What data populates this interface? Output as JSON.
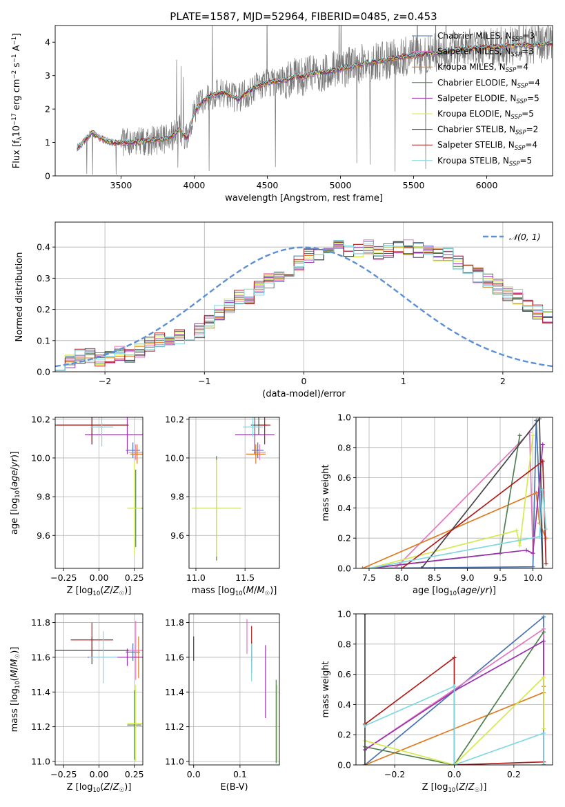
{
  "title": "PLATE=1587, MJD=52964, FIBERID=0485, z=0.453",
  "colors": {
    "chabrier_miles": "#4a72b0",
    "salpeter_miles": "#e377c2",
    "kroupa_miles": "#e07a1f",
    "chabrier_elodie": "#4f7f4f",
    "salpeter_elodie": "#9b30b0",
    "kroupa_elodie": "#d4ea50",
    "chabrier_stelib": "#444444",
    "salpeter_stelib": "#b01c1c",
    "kroupa_stelib": "#7fd8e0",
    "data": "#777777",
    "normal": "#5b8fd6"
  },
  "chart_data": [
    {
      "id": "spectrum",
      "type": "line",
      "xlabel": "wavelength [Angstrom, rest frame]",
      "ylabel": "Flux [f_λ 10^-17 erg cm^-2 s^-1 A^-1]",
      "xlim": [
        3050,
        6450
      ],
      "ylim": [
        0,
        4.5
      ],
      "xticks": [
        "3500",
        "4000",
        "4500",
        "5000",
        "5500",
        "6000"
      ],
      "yticks": [
        "0",
        "1",
        "2",
        "3",
        "4"
      ],
      "legend": "upper right",
      "legend_entries": [
        "Chabrier MILES, N_SSP=3",
        "Salpeter MILES, N_SSP=3",
        "Kroupa MILES, N_SSP=4",
        "Chabrier ELODIE, N_SSP=4",
        "Salpeter ELODIE, N_SSP=5",
        "Kroupa ELODIE, N_SSP=5",
        "Chabrier STELIB, N_SSP=2",
        "Salpeter STELIB, N_SSP=4",
        "Kroupa STELIB, N_SSP=5"
      ],
      "model_continuum": {
        "x": [
          3200,
          3220,
          3260,
          3300,
          3350,
          3400,
          3450,
          3500,
          3550,
          3600,
          3650,
          3700,
          3750,
          3800,
          3850,
          3900,
          3950,
          4000,
          4050,
          4100,
          4150,
          4200,
          4250,
          4300,
          4350,
          4400,
          4450,
          4500,
          4550,
          4600,
          4650,
          4700,
          4750,
          4800,
          4850,
          4900,
          4950,
          5000,
          5100,
          5200,
          5300,
          5400,
          5500,
          5600,
          5700,
          5800,
          5900,
          6000,
          6100,
          6200,
          6300,
          6400
        ],
        "y": [
          0.85,
          0.9,
          1.1,
          1.3,
          1.15,
          1.05,
          0.98,
          1.0,
          1.0,
          1.0,
          1.05,
          1.05,
          1.08,
          1.1,
          1.2,
          1.4,
          1.1,
          1.9,
          2.2,
          2.35,
          2.45,
          2.5,
          2.4,
          2.3,
          2.45,
          2.6,
          2.7,
          2.8,
          2.82,
          2.85,
          2.9,
          3.0,
          2.95,
          3.05,
          3.1,
          3.1,
          3.15,
          3.2,
          3.3,
          3.4,
          3.45,
          3.55,
          3.6,
          3.65,
          3.7,
          3.78,
          3.82,
          3.85,
          3.88,
          3.9,
          3.92,
          3.95
        ]
      }
    },
    {
      "id": "residual-histogram",
      "type": "line",
      "xlabel": "(data-model)/error",
      "ylabel": "Normed distribution",
      "xlim": [
        -2.5,
        2.5
      ],
      "ylim": [
        0,
        0.48
      ],
      "xticks": [
        "−2",
        "−1",
        "0",
        "1",
        "2"
      ],
      "yticks": [
        "0.0",
        "0.1",
        "0.2",
        "0.3",
        "0.4"
      ],
      "legend": "upper right",
      "legend_entries": [
        "𝒩(0, 1)"
      ],
      "hist_base": {
        "x_start": -2.5,
        "bin_width": 0.1,
        "values": [
          0.03,
          0.03,
          0.05,
          0.05,
          0.04,
          0.05,
          0.06,
          0.05,
          0.07,
          0.09,
          0.1,
          0.1,
          0.11,
          0.11,
          0.13,
          0.16,
          0.19,
          0.21,
          0.24,
          0.24,
          0.27,
          0.29,
          0.31,
          0.33,
          0.35,
          0.37,
          0.38,
          0.39,
          0.4,
          0.38,
          0.39,
          0.4,
          0.38,
          0.39,
          0.4,
          0.4,
          0.39,
          0.38,
          0.37,
          0.38,
          0.35,
          0.33,
          0.31,
          0.29,
          0.27,
          0.25,
          0.24,
          0.21,
          0.19,
          0.17,
          0.16,
          0.14,
          0.13,
          0.11,
          0.1,
          0.08,
          0.07,
          0.06,
          0.06,
          0.05,
          0.05,
          0.04,
          0.04,
          0.03,
          0.03
        ]
      },
      "normal_pdf": true
    },
    {
      "id": "age-vs-Z",
      "type": "scatter",
      "xlabel": "Z [log10(Z/Z☉)]",
      "ylabel": "age [log10(age/yr)]",
      "xlim": [
        -0.31,
        0.31
      ],
      "ylim": [
        9.43,
        10.21
      ],
      "xticks": [
        "−0.25",
        "0.00",
        "0.25"
      ],
      "yticks": [
        "9.6",
        "9.8",
        "10.0",
        "10.2"
      ],
      "points": [
        {
          "model": "chabrier_miles",
          "x": 0.24,
          "y": 10.04,
          "xerr": 0.05,
          "yerr": 0.04
        },
        {
          "model": "salpeter_miles",
          "x": 0.26,
          "y": 10.03,
          "xerr": 0.05,
          "yerr": 0.04
        },
        {
          "model": "kroupa_miles",
          "x": 0.27,
          "y": 10.02,
          "xerr": 0.05,
          "yerr": 0.05
        },
        {
          "model": "chabrier_elodie",
          "x": 0.26,
          "y": 9.74,
          "xerr": 0.06,
          "yerr": 0.2
        },
        {
          "model": "salpeter_elodie",
          "x": 0.2,
          "y": 10.12,
          "xerr": 0.3,
          "yerr": 0.1
        },
        {
          "model": "kroupa_elodie",
          "x": 0.25,
          "y": 9.74,
          "xerr": 0.05,
          "yerr": 0.24
        },
        {
          "model": "chabrier_stelib",
          "x": -0.05,
          "y": 10.17,
          "xerr": 0.26,
          "yerr": 0.1
        },
        {
          "model": "salpeter_stelib",
          "x": -0.05,
          "y": 10.17,
          "xerr": 0.25,
          "yerr": 0.1
        },
        {
          "model": "kroupa_stelib",
          "x": 0.02,
          "y": 10.16,
          "xerr": 0.08,
          "yerr": 0.1
        }
      ]
    },
    {
      "id": "age-vs-mass",
      "type": "scatter",
      "xlabel": "mass [log10(M/M☉)]",
      "ylabel": "",
      "xlim": [
        10.93,
        11.85
      ],
      "ylim": [
        9.43,
        10.21
      ],
      "xticks": [
        "11.0",
        "11.5"
      ],
      "yticks": [
        "9.6",
        "9.8",
        "10.0",
        "10.2"
      ],
      "points": [
        {
          "model": "chabrier_miles",
          "x": 11.63,
          "y": 10.04,
          "xerr": 0.06,
          "yerr": 0.04
        },
        {
          "model": "salpeter_miles",
          "x": 11.65,
          "y": 10.03,
          "xerr": 0.06,
          "yerr": 0.04
        },
        {
          "model": "kroupa_miles",
          "x": 11.61,
          "y": 10.02,
          "xerr": 0.1,
          "yerr": 0.05
        },
        {
          "model": "chabrier_elodie",
          "x": 11.21,
          "y": 9.74,
          "xerr": 0.25,
          "yerr": 0.27
        },
        {
          "model": "salpeter_elodie",
          "x": 11.6,
          "y": 10.12,
          "xerr": 0.2,
          "yerr": 0.1
        },
        {
          "model": "kroupa_elodie",
          "x": 11.21,
          "y": 9.74,
          "xerr": 0.25,
          "yerr": 0.25
        },
        {
          "model": "chabrier_stelib",
          "x": 11.64,
          "y": 10.17,
          "xerr": 0.08,
          "yerr": 0.05
        },
        {
          "model": "salpeter_stelib",
          "x": 11.7,
          "y": 10.17,
          "xerr": 0.06,
          "yerr": 0.1
        },
        {
          "model": "kroupa_stelib",
          "x": 11.58,
          "y": 10.16,
          "xerr": 0.1,
          "yerr": 0.05
        }
      ]
    },
    {
      "id": "massweight-vs-age",
      "type": "line",
      "xlabel": "age [log10(age/yr)]",
      "ylabel": "mass weight",
      "xlim": [
        7.3,
        10.3
      ],
      "ylim": [
        0,
        1
      ],
      "xticks": [
        "7.5",
        "8.0",
        "8.5",
        "9.0",
        "9.5",
        "10.0"
      ],
      "yticks": [
        "0.0",
        "0.2",
        "0.4",
        "0.6",
        "0.8",
        "1.0"
      ],
      "series": [
        {
          "model": "chabrier_miles",
          "x": [
            7.4,
            10.0,
            10.05,
            10.15
          ],
          "y": [
            0.0,
            0.01,
            0.98,
            0.0
          ]
        },
        {
          "model": "salpeter_miles",
          "x": [
            7.9,
            9.95,
            10.0
          ],
          "y": [
            0.0,
            0.9,
            0.1
          ]
        },
        {
          "model": "kroupa_miles",
          "x": [
            7.4,
            10.05,
            10.1,
            10.2
          ],
          "y": [
            0.0,
            0.5,
            0.3,
            0.2
          ]
        },
        {
          "model": "chabrier_elodie",
          "x": [
            7.5,
            9.5,
            9.8
          ],
          "y": [
            0.0,
            0.1,
            0.88
          ]
        },
        {
          "model": "salpeter_elodie",
          "x": [
            7.5,
            9.9,
            10.0,
            10.15
          ],
          "y": [
            0.0,
            0.12,
            0.1,
            0.82
          ]
        },
        {
          "model": "kroupa_elodie",
          "x": [
            7.5,
            9.75,
            9.8,
            10.0
          ],
          "y": [
            0.0,
            0.25,
            0.15,
            0.88
          ]
        },
        {
          "model": "chabrier_stelib",
          "x": [
            8.3,
            10.1,
            10.15
          ],
          "y": [
            0.0,
            0.99,
            0.0
          ]
        },
        {
          "model": "salpeter_stelib",
          "x": [
            8.0,
            10.15,
            10.2
          ],
          "y": [
            0.0,
            0.71,
            0.03
          ]
        },
        {
          "model": "kroupa_stelib",
          "x": [
            7.5,
            10.1,
            10.15,
            10.2
          ],
          "y": [
            0.0,
            0.21,
            0.52,
            0.26
          ]
        }
      ]
    },
    {
      "id": "mass-vs-Z",
      "type": "scatter",
      "xlabel": "Z [log10(Z/Z☉)]",
      "ylabel": "mass [log10(M/M☉)]",
      "xlim": [
        -0.31,
        0.31
      ],
      "ylim": [
        10.98,
        11.85
      ],
      "xticks": [
        "−0.25",
        "0.00",
        "0.25"
      ],
      "yticks": [
        "11.0",
        "11.2",
        "11.4",
        "11.6",
        "11.8"
      ],
      "points": [
        {
          "model": "chabrier_miles",
          "x": 0.24,
          "y": 11.63,
          "xerr": 0.05,
          "yerr": 0.05
        },
        {
          "model": "salpeter_miles",
          "x": 0.26,
          "y": 11.64,
          "xerr": 0.05,
          "yerr": 0.17
        },
        {
          "model": "kroupa_miles",
          "x": 0.28,
          "y": 11.6,
          "xerr": 0.05,
          "yerr": 0.12
        },
        {
          "model": "chabrier_elodie",
          "x": 0.25,
          "y": 11.21,
          "xerr": 0.05,
          "yerr": 0.2
        },
        {
          "model": "salpeter_elodie",
          "x": 0.2,
          "y": 11.6,
          "xerr": 0.28,
          "yerr": 0.05
        },
        {
          "model": "kroupa_elodie",
          "x": 0.26,
          "y": 11.22,
          "xerr": 0.06,
          "yerr": 0.22
        },
        {
          "model": "chabrier_stelib",
          "x": -0.05,
          "y": 11.64,
          "xerr": 0.26,
          "yerr": 0.08
        },
        {
          "model": "salpeter_stelib",
          "x": -0.05,
          "y": 11.7,
          "xerr": 0.15,
          "yerr": 0.1
        },
        {
          "model": "kroupa_stelib",
          "x": 0.03,
          "y": 11.6,
          "xerr": 0.1,
          "yerr": 0.15
        }
      ]
    },
    {
      "id": "mass-vs-ebv",
      "type": "scatter",
      "xlabel": "E(B-V)",
      "ylabel": "",
      "xlim": [
        -0.01,
        0.185
      ],
      "ylim": [
        10.98,
        11.85
      ],
      "xticks": [
        "0.0",
        "0.1"
      ],
      "yticks": [
        "11.0",
        "11.2",
        "11.4",
        "11.6",
        "11.8"
      ],
      "points": [
        {
          "model": "chabrier_stelib",
          "x": 0.0,
          "y": 11.65,
          "xerr": 0.0,
          "yerr": 0.07
        },
        {
          "model": "salpeter_miles",
          "x": 0.115,
          "y": 11.72,
          "xerr": 0.0,
          "yerr": 0.1
        },
        {
          "model": "chabrier_elodie",
          "x": 0.125,
          "y": 11.6,
          "xerr": 0.0,
          "yerr": 0.09
        },
        {
          "model": "salpeter_stelib",
          "x": 0.125,
          "y": 11.68,
          "xerr": 0.0,
          "yerr": 0.1
        },
        {
          "model": "kroupa_stelib",
          "x": 0.125,
          "y": 11.57,
          "xerr": 0.0,
          "yerr": 0.11
        },
        {
          "model": "salpeter_elodie",
          "x": 0.155,
          "y": 11.46,
          "xerr": 0.0,
          "yerr": 0.21
        },
        {
          "model": "chabrier_elodie",
          "x": 0.178,
          "y": 11.23,
          "xerr": 0.0,
          "yerr": 0.24
        },
        {
          "model": "kroupa_elodie",
          "x": 0.18,
          "y": 11.22,
          "xerr": 0.0,
          "yerr": 0.22
        }
      ]
    },
    {
      "id": "massweight-vs-Z",
      "type": "line",
      "xlabel": "Z [log10(Z/Z☉)]",
      "ylabel": "mass weight",
      "xlim": [
        -0.33,
        0.33
      ],
      "ylim": [
        0,
        1
      ],
      "xticks": [
        "−0.2",
        "0.0",
        "0.2"
      ],
      "yticks": [
        "0.0",
        "0.2",
        "0.4",
        "0.6",
        "0.8",
        "1.0"
      ],
      "series": [
        {
          "model": "chabrier_miles",
          "x": [
            -0.3,
            0.3,
            0.3
          ],
          "y": [
            0.0,
            0.98,
            0.0
          ]
        },
        {
          "model": "salpeter_miles",
          "x": [
            -0.3,
            0.3,
            0.3
          ],
          "y": [
            0.1,
            0.9,
            0.0
          ]
        },
        {
          "model": "kroupa_miles",
          "x": [
            -0.3,
            0.3,
            0.3
          ],
          "y": [
            0.0,
            0.48,
            0.52
          ]
        },
        {
          "model": "chabrier_elodie",
          "x": [
            -0.3,
            0.0,
            0.3
          ],
          "y": [
            0.12,
            0.0,
            0.88
          ]
        },
        {
          "model": "salpeter_elodie",
          "x": [
            -0.3,
            0.0,
            0.3,
            0.3
          ],
          "y": [
            0.1,
            0.49,
            0.82,
            0.0
          ]
        },
        {
          "model": "kroupa_elodie",
          "x": [
            -0.3,
            0.0,
            0.3,
            0.3
          ],
          "y": [
            0.16,
            0.0,
            0.58,
            0.24
          ]
        },
        {
          "model": "chabrier_stelib",
          "x": [
            -0.3,
            -0.3
          ],
          "y": [
            0.0,
            1.0
          ]
        },
        {
          "model": "salpeter_stelib",
          "x": [
            -0.3,
            0.0,
            0.0,
            0.3,
            0.3
          ],
          "y": [
            0.27,
            0.71,
            0.0,
            0.02,
            0.0
          ]
        },
        {
          "model": "kroupa_stelib",
          "x": [
            -0.3,
            0.0,
            0.0,
            0.3,
            0.3
          ],
          "y": [
            0.26,
            0.52,
            0.0,
            0.21,
            0.0
          ]
        }
      ]
    }
  ]
}
